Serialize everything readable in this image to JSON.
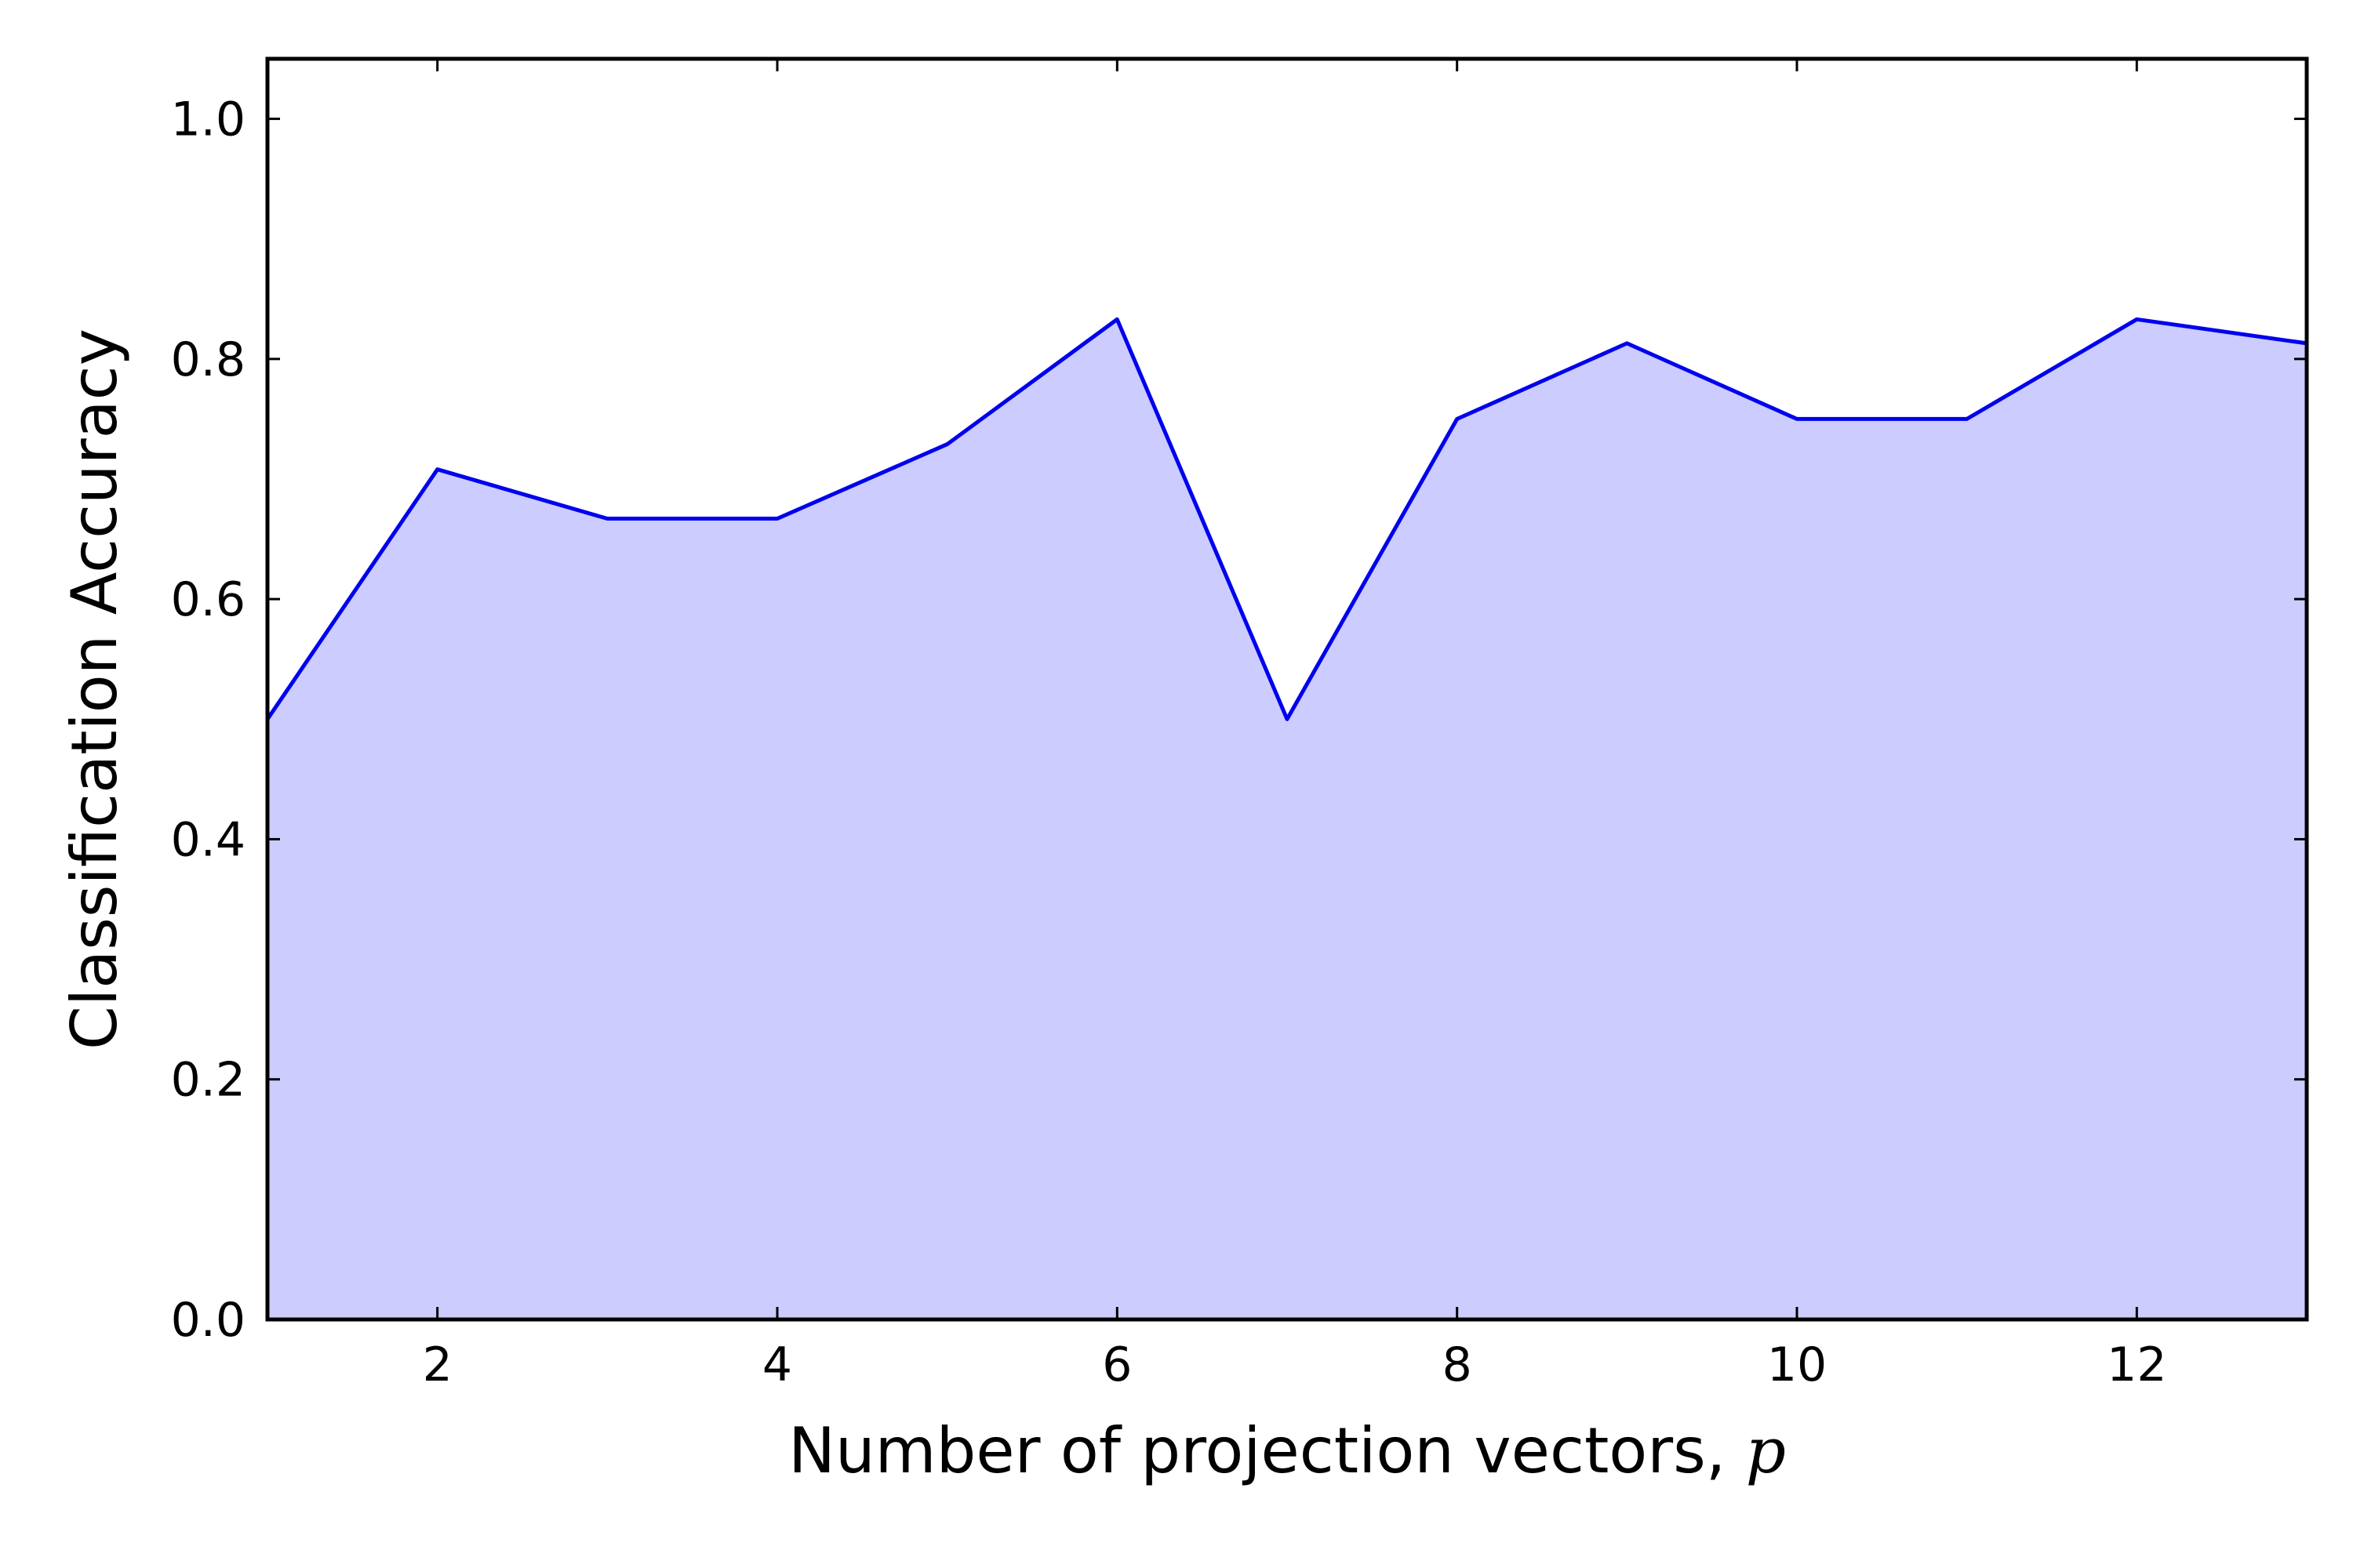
{
  "chart_data": {
    "type": "area",
    "title": "",
    "xlabel": "Number of projection vectors, ",
    "xlabel_var": "p",
    "ylabel": "Classification Accuracy",
    "xlim": [
      1,
      13
    ],
    "ylim": [
      0.0,
      1.05
    ],
    "xticks": [
      2,
      4,
      6,
      8,
      10,
      12
    ],
    "yticks": [
      0.0,
      0.2,
      0.4,
      0.6,
      0.8,
      1.0
    ],
    "xtick_labels": [
      "2",
      "4",
      "6",
      "8",
      "10",
      "12"
    ],
    "ytick_labels": [
      "0.0",
      "0.2",
      "0.4",
      "0.6",
      "0.8",
      "1.0"
    ],
    "grid": false,
    "series": [
      {
        "x": [
          1,
          2,
          3,
          4,
          5,
          6,
          7,
          8,
          9,
          10,
          11,
          12,
          13
        ],
        "values": [
          0.5,
          0.708,
          0.667,
          0.667,
          0.729,
          0.833,
          0.5,
          0.75,
          0.813,
          0.75,
          0.75,
          0.833,
          0.813
        ],
        "line_color": "#0000ee",
        "fill_color": "#ccccff"
      }
    ]
  }
}
